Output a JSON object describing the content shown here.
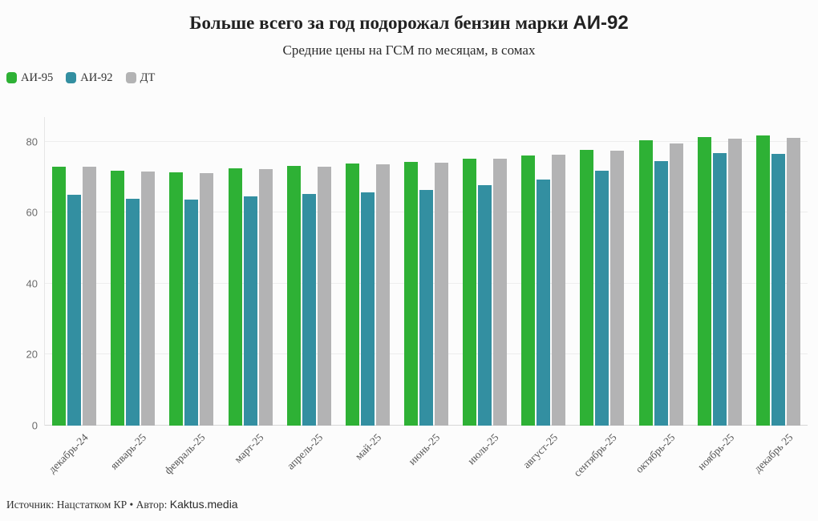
{
  "title": {
    "text_main": "Больше всего за год подорожал бензин марки",
    "text_accent": "АИ-92"
  },
  "subtitle": "Средние цены на ГСМ по месяцам, в сомах",
  "legend": [
    {
      "label": "АИ-95",
      "color": "#2eb135"
    },
    {
      "label": "АИ-92",
      "color": "#338fa1"
    },
    {
      "label": "ДТ",
      "color": "#b3b3b4"
    }
  ],
  "footer": {
    "prefix": "Источник: Нацстатком КР • Автор: ",
    "brand": "Kaktus.media"
  },
  "colors": {
    "background": "#fcfcfc",
    "gridline": "#ededed",
    "baseline": "#d7d7d7",
    "axis_text": "#6b6b6b",
    "month_text": "#555555"
  },
  "chart_data": {
    "type": "bar",
    "title": "Больше всего за год подорожал бензин марки АИ-92",
    "subtitle": "Средние цены на ГСМ по месяцам, в сомах",
    "categories": [
      "декабрь-24",
      "январь-25",
      "февраль-25",
      "март-25",
      "апрель-25",
      "май-25",
      "июнь-25",
      "июль-25",
      "август-25",
      "сентябрь-25",
      "октябрь-25",
      "ноябрь-25",
      "декабрь 25"
    ],
    "series": [
      {
        "name": "АИ-95",
        "color": "#2eb135",
        "values": [
          73.0,
          71.9,
          71.4,
          72.6,
          73.2,
          73.8,
          74.2,
          75.2,
          76.0,
          77.8,
          80.4,
          81.2,
          81.7
        ]
      },
      {
        "name": "АИ-92",
        "color": "#338fa1",
        "values": [
          65.1,
          63.8,
          63.7,
          64.5,
          65.3,
          65.8,
          66.4,
          67.8,
          69.4,
          71.8,
          74.6,
          76.8,
          76.5
        ]
      },
      {
        "name": "ДТ",
        "color": "#b3b3b4",
        "values": [
          72.9,
          71.5,
          71.1,
          72.3,
          73.0,
          73.6,
          74.0,
          75.2,
          76.3,
          77.5,
          79.5,
          80.9,
          81.1
        ]
      }
    ],
    "xlabel": "",
    "ylabel": "",
    "yticks": [
      0,
      20,
      40,
      60,
      80
    ],
    "ylim": [
      0,
      87
    ],
    "grid": "horizontal",
    "legend_position": "top-left"
  }
}
